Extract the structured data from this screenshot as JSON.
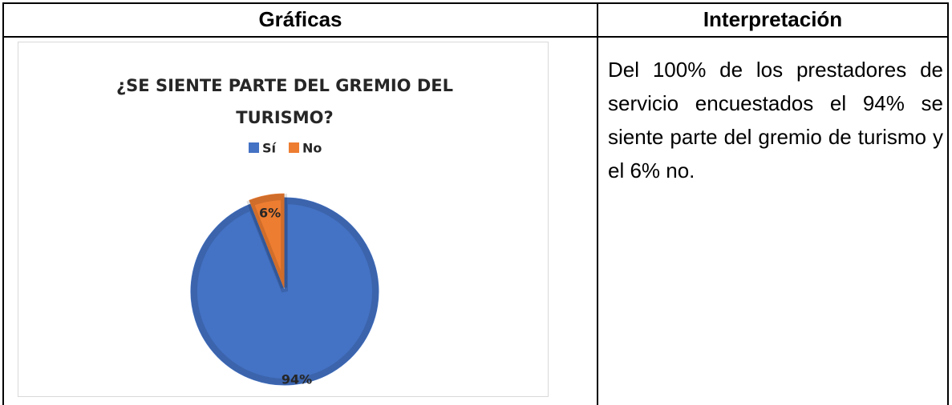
{
  "table": {
    "headers": [
      "Gráficas",
      "Interpretación"
    ],
    "interpretation": "Del 100% de los prestadores de servicio encuestados el 94% se siente parte del gremio de turismo y el 6% no."
  },
  "chart_data": {
    "type": "pie",
    "title": [
      "¿SE SIENTE PARTE DEL GREMIO DEL",
      "TURISMO?"
    ],
    "categories": [
      "Sí",
      "No"
    ],
    "values": [
      94,
      6
    ],
    "value_labels": [
      "94%",
      "6%"
    ],
    "colors": [
      "#4472c4",
      "#ed7d31"
    ],
    "legend": "top"
  }
}
